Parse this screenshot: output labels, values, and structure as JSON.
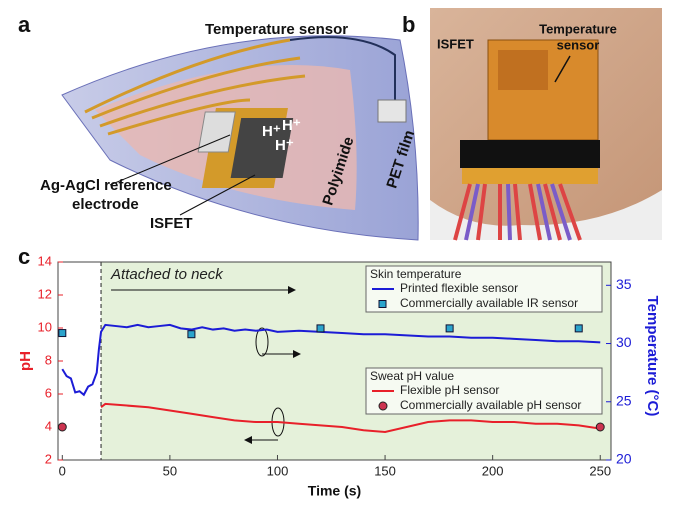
{
  "panels": {
    "a": {
      "label": "a",
      "temperature_sensor": "Temperature sensor",
      "reference": [
        "Ag-AgCl reference",
        "electrode"
      ],
      "isfet": "ISFET",
      "polyimide": "Polyimide",
      "pet_film": "PET film",
      "ions": [
        "H⁺",
        "H⁺",
        "H⁺"
      ]
    },
    "b": {
      "label": "b",
      "isfet": "ISFET",
      "temperature_sensor": [
        "Temperature",
        "sensor"
      ]
    }
  },
  "chart_data": {
    "type": "line",
    "panel_label": "c",
    "xlabel": "Time (s)",
    "ylabel": "pH",
    "y2label": "Temperature (°C)",
    "xlim": [
      -2,
      255
    ],
    "xticks": [
      0,
      50,
      100,
      150,
      200,
      250
    ],
    "ylim": [
      2,
      14
    ],
    "yticks": [
      2,
      4,
      6,
      8,
      10,
      12,
      14
    ],
    "y2lim": [
      20,
      37
    ],
    "y2ticks": [
      20,
      25,
      30,
      35
    ],
    "ycolor": "#e8202a",
    "y2color": "#1c1cd6",
    "annotation": {
      "text": "Attached to neck",
      "x": 18
    },
    "legend_titles": [
      "Skin temperature",
      "Sweat pH value"
    ],
    "series": [
      {
        "name": "Printed flexible sensor",
        "kind": "line",
        "axis": "y2",
        "legend_group": 0,
        "color": "#1c1cd6",
        "x": [
          0,
          2,
          4,
          6,
          8,
          10,
          12,
          14,
          16,
          17,
          18,
          20,
          25,
          30,
          35,
          40,
          45,
          50,
          55,
          60,
          65,
          70,
          75,
          80,
          85,
          90,
          95,
          100,
          110,
          120,
          130,
          140,
          150,
          160,
          170,
          180,
          190,
          200,
          210,
          220,
          230,
          240,
          250
        ],
        "values": [
          27.8,
          27.2,
          27.0,
          25.8,
          25.9,
          25.6,
          26.3,
          26.5,
          27.5,
          29.5,
          31.0,
          31.6,
          31.5,
          31.4,
          31.6,
          31.4,
          31.5,
          31.6,
          31.3,
          31.2,
          31.4,
          31.2,
          31.3,
          31.1,
          31.2,
          31.1,
          31.2,
          31.0,
          31.1,
          31.0,
          30.9,
          30.8,
          30.8,
          30.7,
          30.6,
          30.6,
          30.5,
          30.5,
          30.4,
          30.3,
          30.2,
          30.2,
          30.1
        ]
      },
      {
        "name": "Commercially available IR sensor",
        "kind": "square",
        "axis": "y2",
        "legend_group": 0,
        "color": "#2ba4cc",
        "x": [
          0,
          60,
          120,
          180,
          240
        ],
        "values": [
          30.9,
          30.8,
          31.3,
          31.3,
          31.3
        ]
      },
      {
        "name": "Flexible pH sensor",
        "kind": "line",
        "legend_group": 1,
        "color": "#e8202a",
        "x": [
          18,
          20,
          30,
          40,
          50,
          60,
          70,
          80,
          90,
          100,
          110,
          120,
          130,
          140,
          150,
          160,
          170,
          180,
          190,
          200,
          210,
          220,
          230,
          240,
          250
        ],
        "values": [
          5.2,
          5.4,
          5.3,
          5.2,
          5.0,
          4.8,
          4.6,
          4.4,
          4.3,
          4.3,
          4.2,
          4.1,
          4.0,
          3.8,
          3.7,
          4.0,
          4.3,
          4.4,
          4.4,
          4.3,
          4.3,
          4.2,
          4.2,
          4.1,
          3.9
        ]
      },
      {
        "name": "Commercially available pH sensor",
        "kind": "circle",
        "legend_group": 1,
        "color": "#cc3350",
        "x": [
          0,
          250
        ],
        "values": [
          4.0,
          4.0
        ]
      }
    ]
  }
}
